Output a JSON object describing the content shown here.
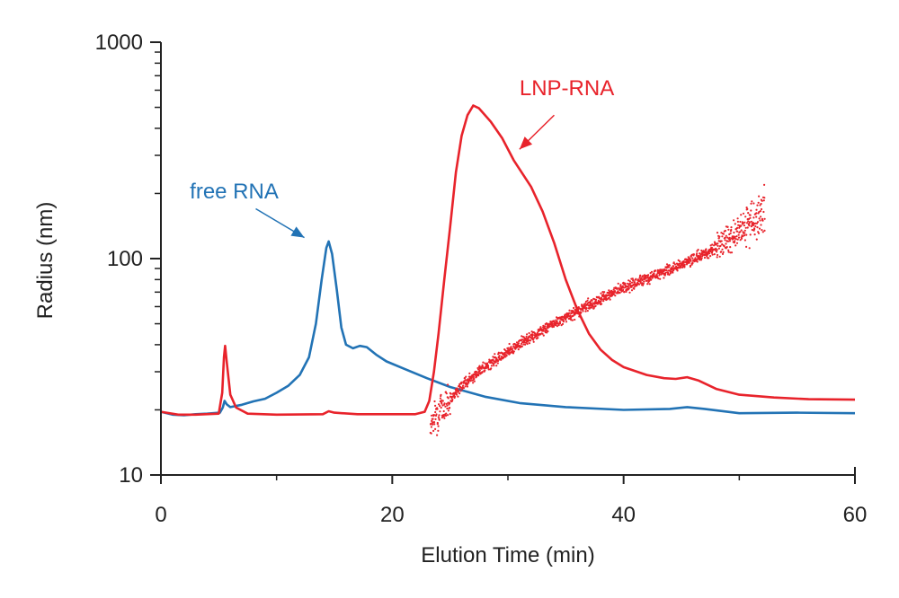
{
  "chart_data": {
    "type": "line",
    "title": "",
    "xlabel": "Elution Time (min)",
    "ylabel": "Radius (nm)",
    "xlim": [
      0,
      60
    ],
    "ylim": [
      10,
      1000
    ],
    "yscale": "log",
    "grid": false,
    "x_ticks": [
      0,
      20,
      40,
      60
    ],
    "x_tick_labels": [
      "0",
      "20",
      "40",
      "60"
    ],
    "y_ticks": [
      10,
      100,
      1000
    ],
    "y_tick_labels": [
      "10",
      "100",
      "1000"
    ],
    "colors": {
      "free_rna": "#2273b5",
      "lnp_rna": "#e8232b",
      "axis": "#222222"
    },
    "series": [
      {
        "name": "free RNA",
        "kind": "line",
        "color": "#2273b5",
        "points": [
          [
            0,
            19.6
          ],
          [
            1,
            19.0
          ],
          [
            2,
            18.9
          ],
          [
            3,
            19.1
          ],
          [
            4,
            19.2
          ],
          [
            5.1,
            19.4
          ],
          [
            5.35,
            20.5
          ],
          [
            5.5,
            22.0
          ],
          [
            5.7,
            21.2
          ],
          [
            6,
            20.6
          ],
          [
            7,
            21.1
          ],
          [
            8,
            21.9
          ],
          [
            9,
            22.5
          ],
          [
            10,
            24.0
          ],
          [
            11,
            25.8
          ],
          [
            12,
            29.0
          ],
          [
            12.8,
            35.0
          ],
          [
            13.4,
            50.0
          ],
          [
            13.9,
            80.0
          ],
          [
            14.3,
            112.0
          ],
          [
            14.5,
            120.0
          ],
          [
            14.8,
            105.0
          ],
          [
            15.2,
            72.0
          ],
          [
            15.6,
            48.0
          ],
          [
            16,
            40.0
          ],
          [
            16.6,
            38.5
          ],
          [
            17.2,
            39.5
          ],
          [
            17.8,
            39.0
          ],
          [
            18.6,
            36.0
          ],
          [
            19.5,
            33.5
          ],
          [
            21,
            31.0
          ],
          [
            23,
            28.0
          ],
          [
            25,
            25.5
          ],
          [
            28,
            23.0
          ],
          [
            31,
            21.5
          ],
          [
            35,
            20.6
          ],
          [
            40,
            20.0
          ],
          [
            44,
            20.2
          ],
          [
            45.5,
            20.6
          ],
          [
            47,
            20.2
          ],
          [
            50,
            19.3
          ],
          [
            55,
            19.4
          ],
          [
            60,
            19.3
          ]
        ]
      },
      {
        "name": "LNP-RNA",
        "kind": "line",
        "color": "#e8232b",
        "points": [
          [
            0,
            19.6
          ],
          [
            1.5,
            19.0
          ],
          [
            3,
            19.0
          ],
          [
            5,
            19.2
          ],
          [
            5.3,
            24.0
          ],
          [
            5.45,
            35.0
          ],
          [
            5.55,
            39.5
          ],
          [
            5.7,
            33.0
          ],
          [
            6,
            23.5
          ],
          [
            6.5,
            20.5
          ],
          [
            7.5,
            19.2
          ],
          [
            10,
            19.0
          ],
          [
            14,
            19.1
          ],
          [
            14.5,
            19.7
          ],
          [
            15,
            19.4
          ],
          [
            17,
            19.1
          ],
          [
            22,
            19.1
          ],
          [
            22.8,
            19.6
          ],
          [
            23.2,
            22.0
          ],
          [
            23.6,
            30.0
          ],
          [
            24,
            45.0
          ],
          [
            24.5,
            80.0
          ],
          [
            25,
            140.0
          ],
          [
            25.5,
            250.0
          ],
          [
            26,
            370.0
          ],
          [
            26.5,
            460.0
          ],
          [
            27,
            510.0
          ],
          [
            27.5,
            495.0
          ],
          [
            28.5,
            430.0
          ],
          [
            29.5,
            360.0
          ],
          [
            30.5,
            285.0
          ],
          [
            32,
            215.0
          ],
          [
            33,
            165.0
          ],
          [
            34,
            118.0
          ],
          [
            35,
            80.0
          ],
          [
            36,
            58.0
          ],
          [
            37,
            45.0
          ],
          [
            38,
            38.0
          ],
          [
            39,
            34.0
          ],
          [
            40,
            31.5
          ],
          [
            42,
            29.0
          ],
          [
            43.5,
            28.0
          ],
          [
            44.5,
            27.8
          ],
          [
            45.5,
            28.3
          ],
          [
            46.5,
            27.3
          ],
          [
            48,
            25.0
          ],
          [
            50,
            23.5
          ],
          [
            53,
            22.8
          ],
          [
            56,
            22.4
          ],
          [
            60,
            22.3
          ]
        ]
      },
      {
        "name": "LNP-RNA radius",
        "kind": "scatter",
        "color": "#e8232b",
        "x_range": [
          23.3,
          52.2
        ],
        "trend": [
          [
            23.3,
            17.2
          ],
          [
            24,
            19.5
          ],
          [
            25,
            22.5
          ],
          [
            26,
            26.0
          ],
          [
            28,
            31.5
          ],
          [
            30,
            37.5
          ],
          [
            32,
            43.5
          ],
          [
            34,
            50.0
          ],
          [
            36,
            57.0
          ],
          [
            38,
            65.0
          ],
          [
            40,
            73.0
          ],
          [
            42,
            81.0
          ],
          [
            44,
            89.5
          ],
          [
            46,
            99.0
          ],
          [
            48,
            113.0
          ],
          [
            50,
            135.0
          ],
          [
            52,
            160.0
          ]
        ]
      }
    ],
    "annotations": [
      {
        "text": "free RNA",
        "color": "#2273b5",
        "text_at": [
          2.5,
          190
        ],
        "arrow_from": [
          8.2,
          170
        ],
        "arrow_to": [
          12.4,
          125
        ]
      },
      {
        "text": "LNP-RNA",
        "color": "#e8232b",
        "text_at": [
          31.0,
          570
        ],
        "arrow_from": [
          34.0,
          460
        ],
        "arrow_to": [
          31.0,
          320
        ]
      }
    ]
  }
}
